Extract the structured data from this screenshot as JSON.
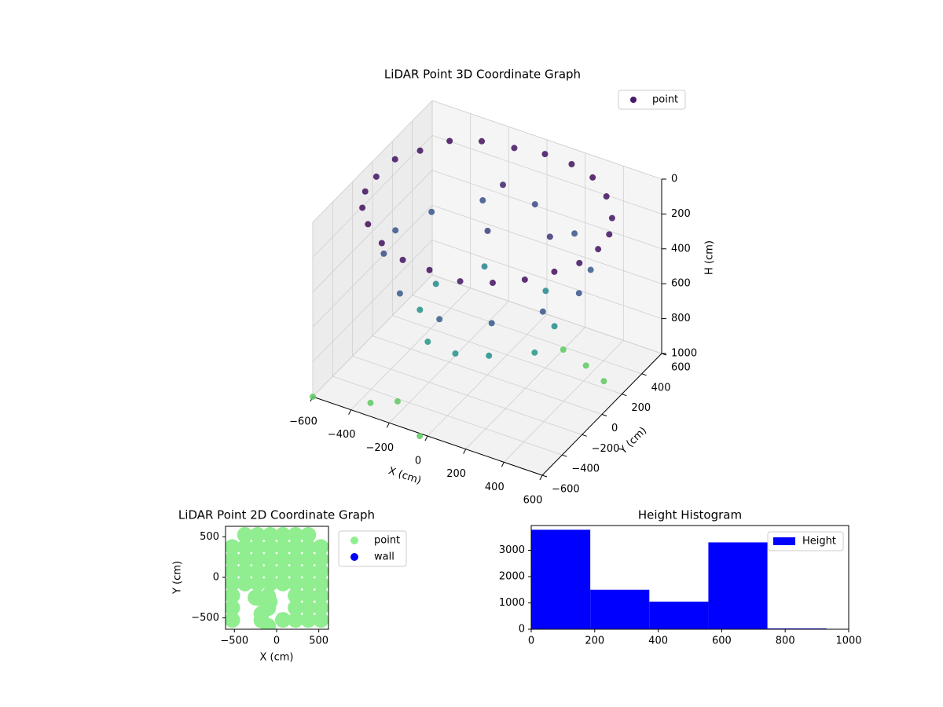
{
  "chart_data": [
    {
      "type": "scatter3d",
      "title": "LiDAR Point 3D Coordinate Graph",
      "x_label": "X (cm)",
      "y_label": "Y (cm)",
      "z_label": "H (cm)",
      "xlim": [
        -600,
        600
      ],
      "ylim": [
        -600,
        600
      ],
      "zlim": [
        1000,
        0
      ],
      "xticks": [
        {
          "value": -600,
          "label": "−600"
        },
        {
          "value": -400,
          "label": "−400"
        },
        {
          "value": -200,
          "label": "−200"
        },
        0,
        200,
        400,
        600
      ],
      "yticks": [
        {
          "value": -600,
          "label": "−600"
        },
        {
          "value": -400,
          "label": "−400"
        },
        {
          "value": -200,
          "label": "−200"
        },
        0,
        200,
        400,
        600
      ],
      "zticks": [
        0,
        200,
        400,
        600,
        800,
        1000
      ],
      "colormap": [
        "#440154",
        "#3b528b",
        "#21918c",
        "#5ec962"
      ],
      "legend": "upper right",
      "grid": true,
      "series": [
        {
          "name": "point",
          "color": "#481a6c",
          "x": [
            580,
            560,
            502,
            410,
            290,
            150,
            0,
            -150,
            -290,
            -410,
            -502,
            -560,
            -580,
            -560,
            -502,
            -410,
            -290,
            -150,
            0,
            150,
            290,
            410,
            502,
            560,
            480,
            416,
            240,
            0,
            -240,
            -416,
            -480,
            -416,
            -240,
            0,
            240,
            416,
            310,
            160,
            -160,
            -310,
            -300,
            -160,
            0,
            160,
            300,
            250,
            -100,
            -50,
            -600,
            -350,
            -250,
            -30,
            200,
            350,
            480
          ],
          "y": [
            0,
            150,
            290,
            410,
            502,
            560,
            580,
            560,
            502,
            410,
            290,
            150,
            0,
            -150,
            -290,
            -410,
            -502,
            -560,
            -580,
            -560,
            -502,
            -410,
            -290,
            -150,
            0,
            240,
            416,
            480,
            416,
            240,
            0,
            -240,
            -416,
            -480,
            -416,
            -240,
            80,
            280,
            280,
            80,
            -100,
            -290,
            -320,
            -290,
            -100,
            150,
            350,
            100,
            -600,
            -500,
            -420,
            -620,
            380,
            320,
            250
          ],
          "h": [
            60,
            70,
            80,
            60,
            50,
            60,
            70,
            80,
            60,
            50,
            70,
            60,
            80,
            70,
            60,
            50,
            60,
            70,
            60,
            80,
            70,
            60,
            50,
            60,
            350,
            380,
            340,
            300,
            330,
            360,
            350,
            320,
            380,
            400,
            370,
            340,
            650,
            620,
            600,
            640,
            680,
            700,
            690,
            660,
            700,
            200,
            150,
            250,
            1000,
            1000,
            1000,
            1000,
            1000,
            1000,
            1000
          ]
        }
      ]
    },
    {
      "type": "scatter",
      "title": "LiDAR Point 2D Coordinate Graph",
      "x_label": "X (cm)",
      "y_label": "Y (cm)",
      "xlim": [
        -605,
        615
      ],
      "ylim": [
        -640,
        630
      ],
      "xticks": [
        {
          "value": -500,
          "label": "−500"
        },
        0,
        500
      ],
      "yticks": [
        {
          "value": -500,
          "label": "−500"
        },
        0,
        500
      ],
      "legend": "outside right",
      "series": [
        {
          "name": "point",
          "color": "#90ee90",
          "x": [
            -375,
            -225,
            -75,
            75,
            225,
            375,
            -525,
            -375,
            -225,
            -75,
            75,
            225,
            375,
            525,
            -525,
            -375,
            -225,
            -75,
            75,
            225,
            375,
            525,
            -525,
            -375,
            -225,
            -75,
            75,
            225,
            375,
            525,
            -525,
            -375,
            -225,
            -75,
            75,
            225,
            375,
            525,
            -525,
            225,
            375,
            525,
            -200,
            -100,
            -525,
            225,
            375,
            525,
            -525,
            75,
            225,
            375,
            525,
            -180,
            -100,
            -250,
            -180,
            -80,
            -100
          ],
          "y": [
            525,
            525,
            525,
            525,
            525,
            525,
            375,
            375,
            375,
            375,
            375,
            375,
            375,
            375,
            225,
            225,
            225,
            225,
            225,
            225,
            225,
            225,
            75,
            75,
            75,
            75,
            75,
            75,
            75,
            75,
            -75,
            -75,
            -75,
            -75,
            -75,
            -75,
            -75,
            -75,
            -225,
            -225,
            -225,
            -225,
            -260,
            -230,
            -375,
            -375,
            -375,
            -375,
            -525,
            -525,
            -525,
            -525,
            -525,
            -530,
            -600,
            -250,
            -450,
            -300,
            -380
          ]
        },
        {
          "name": "wall",
          "color": "#0000ff",
          "x": [],
          "y": []
        }
      ]
    },
    {
      "type": "histogram",
      "title": "Height Histogram",
      "xlim": [
        0,
        1000
      ],
      "ylim": [
        0,
        3940
      ],
      "xticks": [
        0,
        200,
        400,
        600,
        800,
        1000
      ],
      "yticks": [
        0,
        1000,
        2000,
        3000
      ],
      "legend": "upper right",
      "series": [
        {
          "name": "Height",
          "color": "#0000ff",
          "bins": [
            0,
            186,
            372,
            558,
            744,
            930
          ],
          "values": [
            3780,
            1500,
            1050,
            3300,
            30
          ]
        }
      ]
    }
  ]
}
